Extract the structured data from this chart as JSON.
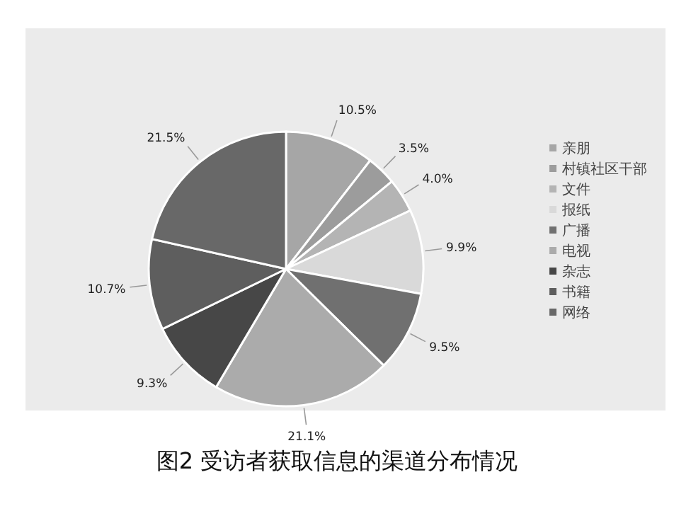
{
  "chart_data": {
    "type": "pie",
    "title": "图2 受访者获取信息的渠道分布情况",
    "categories": [
      "亲朋",
      "村镇社区干部",
      "文件",
      "报纸",
      "广播",
      "电视",
      "杂志",
      "书籍",
      "网络"
    ],
    "values": [
      10.5,
      3.5,
      4.0,
      9.9,
      9.5,
      21.1,
      9.3,
      10.7,
      21.5
    ],
    "value_labels": [
      "10.5%",
      "3.5%",
      "4.0%",
      "9.9%",
      "9.5%",
      "21.1%",
      "9.3%",
      "10.7%",
      "21.5%"
    ],
    "colors": [
      "#a6a6a6",
      "#9c9c9c",
      "#b4b4b4",
      "#d9d9d9",
      "#707070",
      "#ababab",
      "#474747",
      "#5e5e5e",
      "#686868"
    ],
    "legend": "right"
  }
}
